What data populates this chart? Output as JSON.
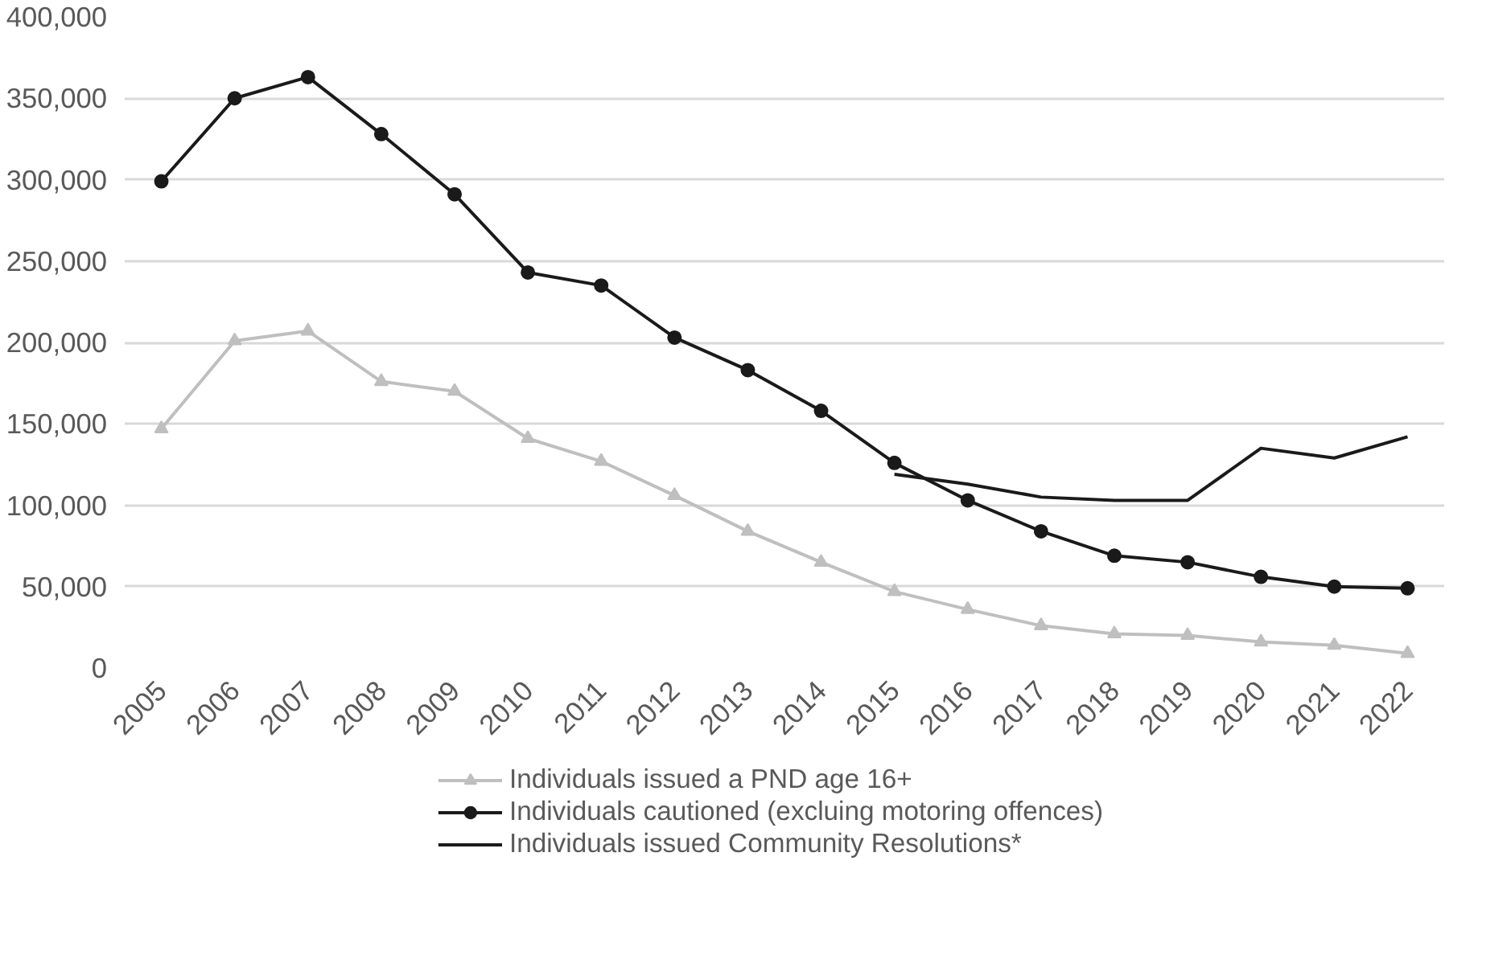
{
  "chart_data": {
    "type": "line",
    "categories": [
      "2005",
      "2006",
      "2007",
      "2008",
      "2009",
      "2010",
      "2011",
      "2012",
      "2013",
      "2014",
      "2015",
      "2016",
      "2017",
      "2018",
      "2019",
      "2020",
      "2021",
      "2022"
    ],
    "series": [
      {
        "name": "Individuals issued a PND age 16+",
        "color": "#bfbfbf",
        "marker": "triangle",
        "values": [
          147000,
          201000,
          207000,
          176000,
          170000,
          141000,
          127000,
          106000,
          84000,
          65000,
          47000,
          36000,
          26000,
          21000,
          20000,
          16000,
          14000,
          9000
        ]
      },
      {
        "name": "Individuals cautioned (excluing motoring offences)",
        "color": "#1a1a1a",
        "marker": "circle",
        "values": [
          299000,
          350000,
          363000,
          328000,
          291000,
          243000,
          235000,
          203000,
          183000,
          158000,
          126000,
          103000,
          84000,
          69000,
          65000,
          56000,
          50000,
          49000
        ]
      },
      {
        "name": "Individuals issued Community Resolutions*",
        "color": "#1a1a1a",
        "marker": "none",
        "values": [
          null,
          null,
          null,
          null,
          null,
          null,
          null,
          null,
          null,
          null,
          119000,
          113000,
          105000,
          103000,
          103000,
          135000,
          129000,
          142000
        ]
      }
    ],
    "ylim": [
      0,
      400000
    ],
    "yticks": [
      {
        "value": 0,
        "label": "0"
      },
      {
        "value": 50000,
        "label": "50,000"
      },
      {
        "value": 100000,
        "label": "100,000"
      },
      {
        "value": 150000,
        "label": "150,000"
      },
      {
        "value": 200000,
        "label": "200,000"
      },
      {
        "value": 250000,
        "label": "250,000"
      },
      {
        "value": 300000,
        "label": "300,000"
      },
      {
        "value": 350000,
        "label": "350,000"
      },
      {
        "value": 400000,
        "label": "400,000"
      }
    ],
    "grid": "y",
    "legend": "bottom"
  }
}
